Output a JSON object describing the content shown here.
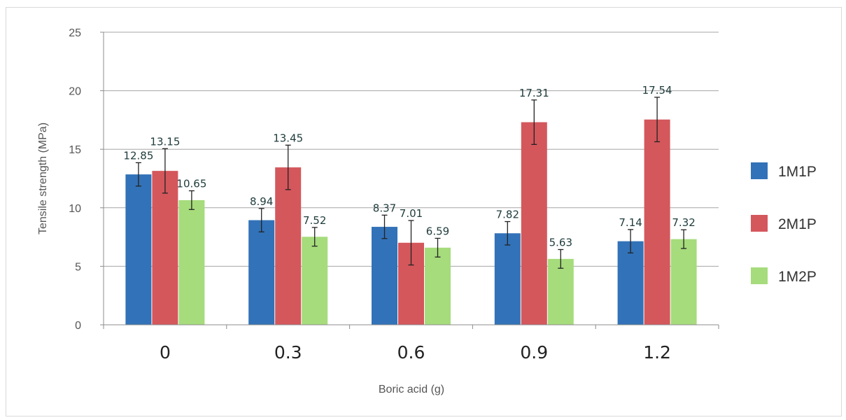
{
  "chart_data": {
    "type": "bar",
    "title": "",
    "xlabel": "Boric acid (g)",
    "ylabel": "Tensile strength (MPa)",
    "categories": [
      "0",
      "0.3",
      "0.6",
      "0.9",
      "1.2"
    ],
    "ylim": [
      0,
      25
    ],
    "yticks": [
      0,
      5,
      10,
      15,
      20,
      25
    ],
    "grid": true,
    "legend_position": "right",
    "series": [
      {
        "name": "1M1P",
        "color": "#3272b8",
        "values": [
          12.85,
          8.94,
          8.37,
          7.82,
          7.14
        ],
        "labels": [
          "12.85",
          "8.94",
          "8.37",
          "7.82",
          "7.14"
        ],
        "error": [
          1.0,
          1.0,
          1.0,
          1.0,
          1.0
        ]
      },
      {
        "name": "2M1P",
        "color": "#d4575c",
        "values": [
          13.15,
          13.45,
          7.01,
          17.31,
          17.54
        ],
        "labels": [
          "13.15",
          "13.45",
          "7.01",
          "17.31",
          "17.54"
        ],
        "error": [
          1.9,
          1.9,
          1.9,
          1.9,
          1.9
        ]
      },
      {
        "name": "1M2P",
        "color": "#a6dc7c",
        "values": [
          10.65,
          7.52,
          6.59,
          5.63,
          7.32
        ],
        "labels": [
          "10.65",
          "7.52",
          "6.59",
          "5.63",
          "7.32"
        ],
        "error": [
          0.8,
          0.8,
          0.8,
          0.8,
          0.8
        ]
      }
    ]
  }
}
